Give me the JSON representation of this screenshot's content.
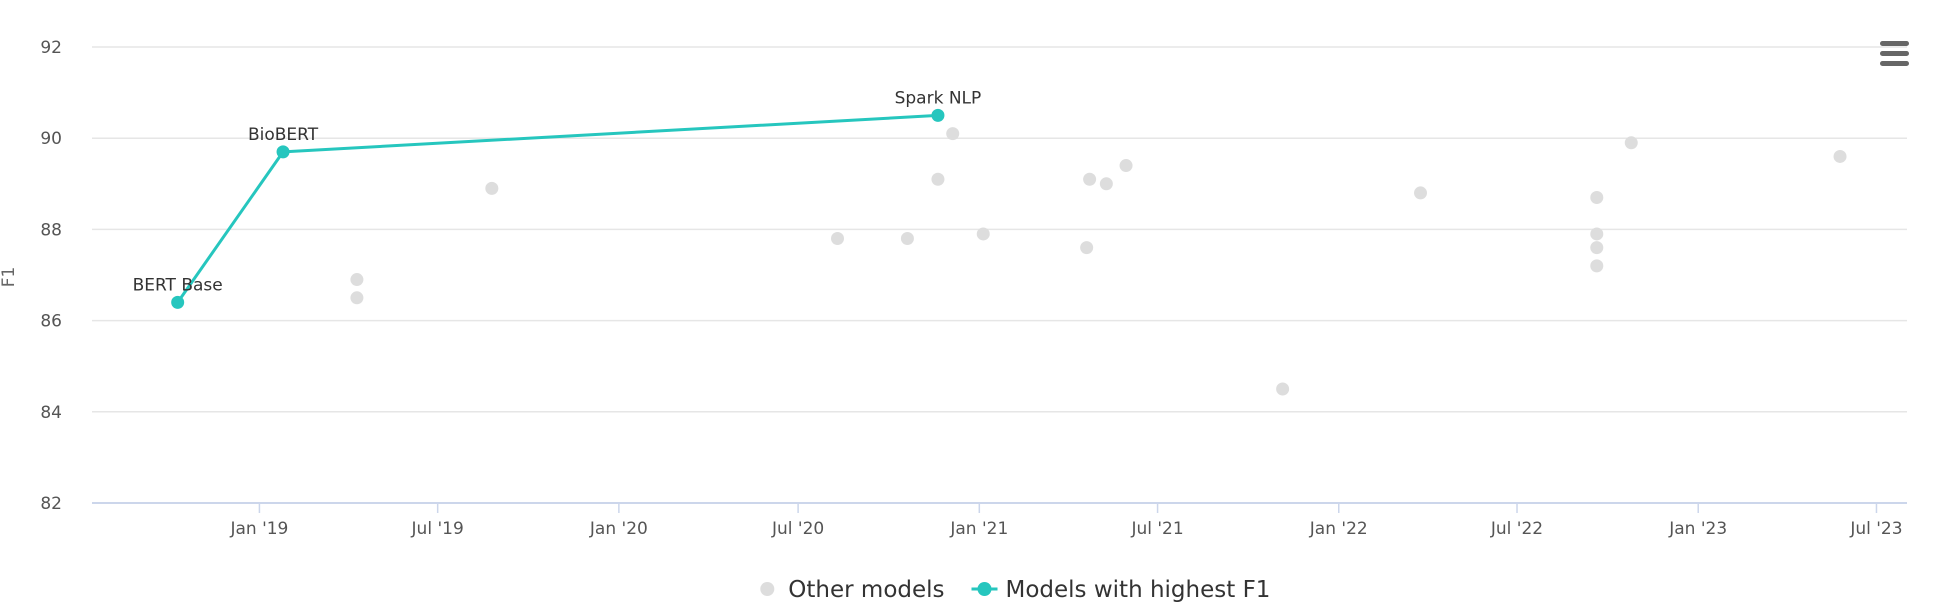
{
  "chart_data": {
    "type": "scatter",
    "title": "",
    "xlabel": "",
    "ylabel": "F1",
    "x_axis": {
      "type": "datetime",
      "min": "2018-07-15",
      "max": "2023-08-01",
      "ticks": [
        {
          "date": "2019-01-01",
          "label": "Jan '19"
        },
        {
          "date": "2019-07-01",
          "label": "Jul '19"
        },
        {
          "date": "2020-01-01",
          "label": "Jan '20"
        },
        {
          "date": "2020-07-01",
          "label": "Jul '20"
        },
        {
          "date": "2021-01-01",
          "label": "Jan '21"
        },
        {
          "date": "2021-07-01",
          "label": "Jul '21"
        },
        {
          "date": "2022-01-01",
          "label": "Jan '22"
        },
        {
          "date": "2022-07-01",
          "label": "Jul '22"
        },
        {
          "date": "2023-01-01",
          "label": "Jan '23"
        },
        {
          "date": "2023-07-01",
          "label": "Jul '23"
        }
      ]
    },
    "y_axis": {
      "min": 82,
      "max": 92,
      "ticks": [
        82,
        84,
        86,
        88,
        90,
        92
      ]
    },
    "grid": true,
    "legend_position": "bottom-center",
    "series": [
      {
        "name": "Other models",
        "color": "#dddddd",
        "marker": "circle",
        "points": [
          {
            "x": "2019-04-10",
            "y": 86.9
          },
          {
            "x": "2019-04-10",
            "y": 86.5
          },
          {
            "x": "2019-08-25",
            "y": 88.9
          },
          {
            "x": "2020-08-10",
            "y": 87.8
          },
          {
            "x": "2020-10-20",
            "y": 87.8
          },
          {
            "x": "2020-11-20",
            "y": 89.1
          },
          {
            "x": "2020-12-05",
            "y": 90.1
          },
          {
            "x": "2021-01-05",
            "y": 87.9
          },
          {
            "x": "2021-04-20",
            "y": 87.6
          },
          {
            "x": "2021-04-23",
            "y": 89.1
          },
          {
            "x": "2021-05-10",
            "y": 89.0
          },
          {
            "x": "2021-05-30",
            "y": 89.4
          },
          {
            "x": "2021-11-05",
            "y": 84.5
          },
          {
            "x": "2022-03-25",
            "y": 88.8
          },
          {
            "x": "2022-09-20",
            "y": 88.7
          },
          {
            "x": "2022-09-20",
            "y": 87.9
          },
          {
            "x": "2022-09-20",
            "y": 87.6
          },
          {
            "x": "2022-09-20",
            "y": 87.2
          },
          {
            "x": "2022-10-25",
            "y": 89.9
          },
          {
            "x": "2023-05-25",
            "y": 89.6
          }
        ]
      },
      {
        "name": "Models with highest F1",
        "color": "#26c6be",
        "marker": "circle",
        "line": true,
        "points": [
          {
            "x": "2018-10-10",
            "y": 86.4,
            "label": "BERT Base"
          },
          {
            "x": "2019-01-25",
            "y": 89.7,
            "label": "BioBERT"
          },
          {
            "x": "2020-11-20",
            "y": 90.5,
            "label": "Spark NLP"
          }
        ]
      }
    ]
  },
  "menu_icon": "hamburger-menu-icon"
}
